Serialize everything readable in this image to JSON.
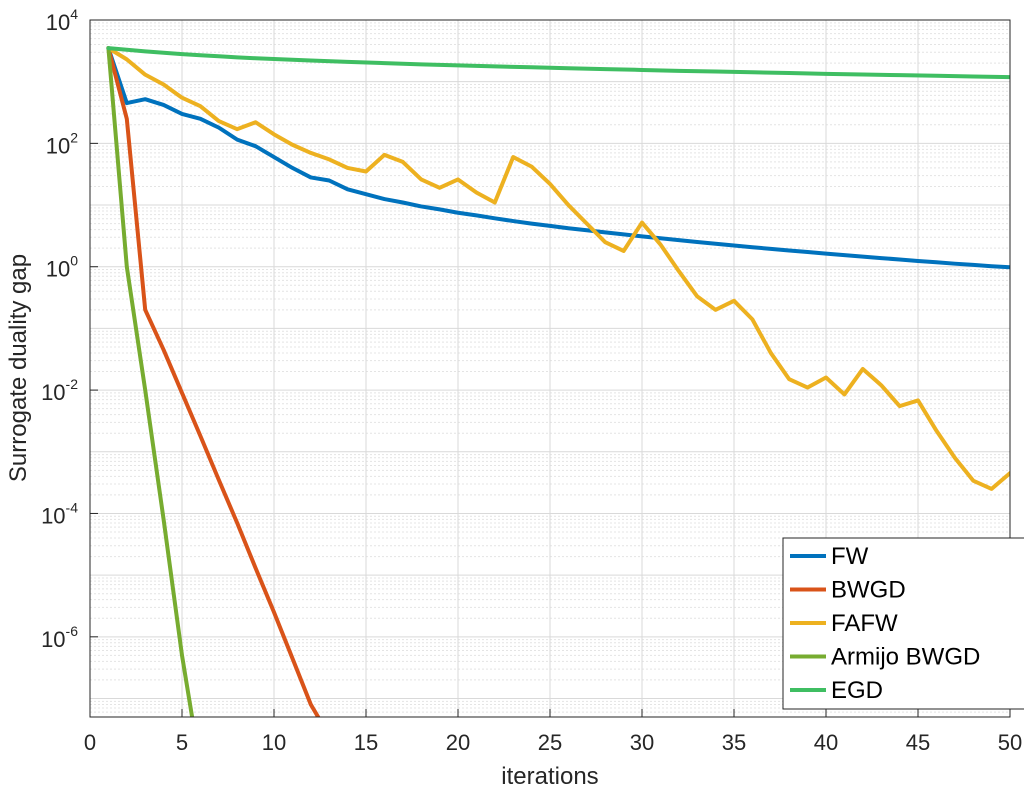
{
  "chart_data": {
    "type": "line",
    "title": "",
    "xlabel": "iterations",
    "ylabel": "Surrogate duality gap",
    "xlim": [
      0,
      50
    ],
    "ylim_log10": [
      -7.3,
      4
    ],
    "yscale": "log",
    "xticks": [
      0,
      5,
      10,
      15,
      20,
      25,
      30,
      35,
      40,
      45,
      50
    ],
    "yticks": [
      {
        "base": "10",
        "exp": "4",
        "value": 10000
      },
      {
        "base": "10",
        "exp": "2",
        "value": 100
      },
      {
        "base": "10",
        "exp": "0",
        "value": 1
      },
      {
        "base": "10",
        "exp": "-2",
        "value": 0.01
      },
      {
        "base": "10",
        "exp": "-4",
        "value": 0.0001
      },
      {
        "base": "10",
        "exp": "-6",
        "value": 1e-06
      }
    ],
    "grid": true,
    "legend_position": "bottom-right",
    "series": [
      {
        "name": "FW",
        "color": "#0072BD",
        "x": [
          1,
          2,
          3,
          4,
          5,
          6,
          7,
          8,
          9,
          10,
          11,
          12,
          13,
          14,
          15,
          16,
          17,
          18,
          19,
          20,
          21,
          22,
          23,
          24,
          25,
          26,
          27,
          28,
          29,
          30,
          31,
          32,
          33,
          34,
          35,
          36,
          37,
          38,
          39,
          40,
          41,
          42,
          43,
          44,
          45,
          46,
          47,
          48,
          49,
          50
        ],
        "y": [
          3500,
          450,
          520,
          420,
          300,
          250,
          180,
          115,
          90,
          60,
          40,
          28,
          25,
          18,
          15,
          12.5,
          11,
          9.5,
          8.5,
          7.5,
          6.8,
          6.1,
          5.5,
          5,
          4.6,
          4.2,
          3.9,
          3.6,
          3.35,
          3.1,
          2.9,
          2.7,
          2.52,
          2.36,
          2.21,
          2.07,
          1.95,
          1.83,
          1.73,
          1.63,
          1.54,
          1.46,
          1.38,
          1.31,
          1.24,
          1.18,
          1.12,
          1.07,
          1.02,
          0.98
        ]
      },
      {
        "name": "BWGD",
        "color": "#D95319",
        "x": [
          1,
          2,
          3,
          4,
          5,
          6,
          7,
          8,
          9,
          10,
          11,
          12,
          12.4
        ],
        "y": [
          3500,
          250,
          0.2,
          0.045,
          0.009,
          0.0018,
          0.00035,
          7e-05,
          1.3e-05,
          2.5e-06,
          4.5e-07,
          8e-08,
          5e-08
        ]
      },
      {
        "name": "FAFW",
        "color": "#EDB120",
        "x": [
          1,
          2,
          3,
          4,
          5,
          6,
          7,
          8,
          9,
          10,
          11,
          12,
          13,
          14,
          15,
          16,
          17,
          18,
          19,
          20,
          21,
          22,
          23,
          24,
          25,
          26,
          27,
          28,
          29,
          30,
          31,
          32,
          33,
          34,
          35,
          36,
          37,
          38,
          39,
          40,
          41,
          42,
          43,
          44,
          45,
          46,
          47,
          48,
          49,
          50
        ],
        "y": [
          3500,
          2300,
          1300,
          900,
          550,
          400,
          230,
          170,
          220,
          140,
          95,
          70,
          55,
          40,
          35,
          65,
          50,
          26,
          19,
          26,
          16,
          11,
          60,
          42,
          22,
          10,
          5,
          2.5,
          1.8,
          5.2,
          2.3,
          0.85,
          0.33,
          0.2,
          0.28,
          0.14,
          0.04,
          0.015,
          0.011,
          0.016,
          0.0085,
          0.022,
          0.012,
          0.0055,
          0.0068,
          0.0022,
          0.0008,
          0.00034,
          0.00025,
          0.00045
        ]
      },
      {
        "name": "Armijo BWGD",
        "color": "#77AC30",
        "x": [
          1,
          2,
          3,
          4,
          5,
          5.55
        ],
        "y": [
          3500,
          1.0,
          0.01,
          8e-05,
          5e-07,
          5e-08
        ]
      },
      {
        "name": "EGD",
        "color": "#3FBE62",
        "x": [
          1,
          2,
          3,
          4,
          5,
          6,
          7,
          8,
          9,
          10,
          12,
          14,
          16,
          18,
          20,
          22,
          24,
          26,
          28,
          30,
          32,
          34,
          36,
          38,
          40,
          42,
          44,
          46,
          48,
          50
        ],
        "y": [
          3500,
          3300,
          3100,
          2950,
          2800,
          2680,
          2580,
          2480,
          2400,
          2330,
          2200,
          2090,
          2000,
          1910,
          1840,
          1770,
          1710,
          1650,
          1600,
          1550,
          1500,
          1460,
          1420,
          1380,
          1340,
          1310,
          1275,
          1245,
          1215,
          1185
        ]
      }
    ]
  }
}
